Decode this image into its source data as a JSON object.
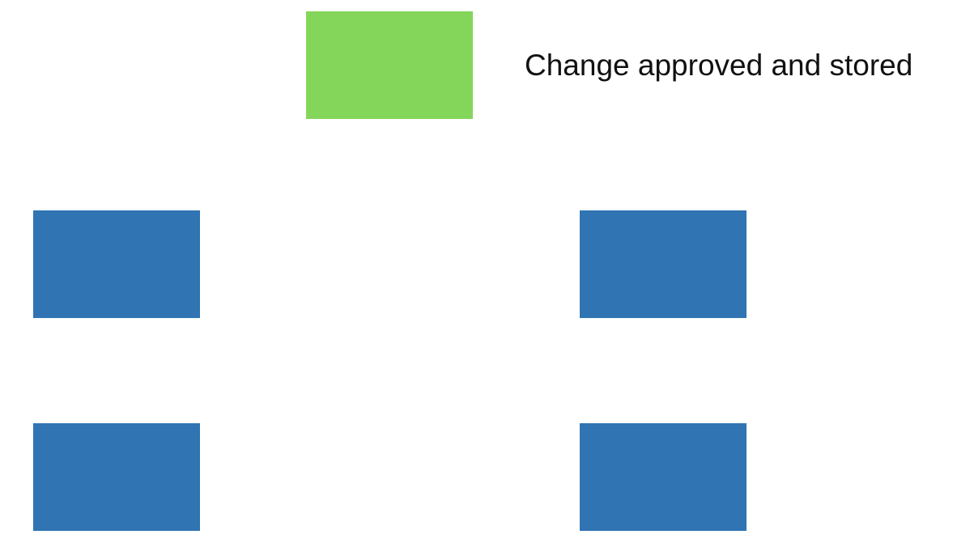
{
  "colors": {
    "approved": "#84D65A",
    "node": "#3074B3",
    "text": "#111111",
    "background": "#FFFFFF"
  },
  "legend": {
    "approved_label": "Change approved and stored"
  },
  "nodes": [
    {
      "id": "approved",
      "state": "approved"
    },
    {
      "id": "left-1",
      "state": "default"
    },
    {
      "id": "right-1",
      "state": "default"
    },
    {
      "id": "left-2",
      "state": "default"
    },
    {
      "id": "right-2",
      "state": "default"
    }
  ]
}
